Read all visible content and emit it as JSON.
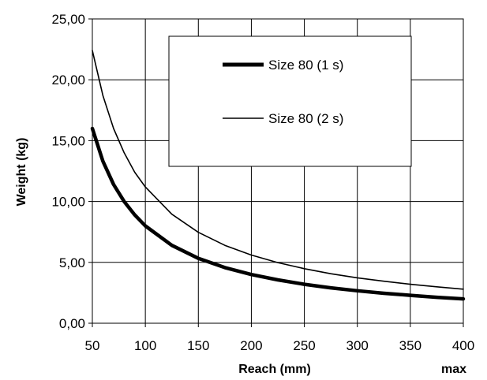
{
  "chart_data": {
    "type": "line",
    "title": "",
    "xlabel": "Reach (mm)",
    "ylabel": "Weight (kg)",
    "x_extra_label": "max",
    "xlim": [
      50,
      400
    ],
    "ylim": [
      0,
      25
    ],
    "x_ticks": [
      50,
      100,
      150,
      200,
      250,
      300,
      350,
      400
    ],
    "x_tick_labels": [
      "50",
      "100",
      "150",
      "200",
      "250",
      "300",
      "350",
      "400"
    ],
    "y_ticks": [
      0,
      5,
      10,
      15,
      20,
      25
    ],
    "y_tick_labels": [
      "0,00",
      "5,00",
      "10,00",
      "15,00",
      "20,00",
      "25,00"
    ],
    "grid": true,
    "legend_position": "top-right",
    "x": [
      50,
      60,
      70,
      80,
      90,
      100,
      125,
      150,
      175,
      200,
      225,
      250,
      275,
      300,
      325,
      350,
      375,
      400
    ],
    "series": [
      {
        "name": "Size 80 (1 s)",
        "line_width": "thick",
        "color": "#000000",
        "values": [
          16.0,
          13.3,
          11.4,
          10.0,
          8.9,
          8.0,
          6.4,
          5.33,
          4.57,
          4.0,
          3.56,
          3.2,
          2.91,
          2.67,
          2.46,
          2.29,
          2.13,
          2.0
        ]
      },
      {
        "name": "Size 80 (2 s)",
        "line_width": "thin",
        "color": "#000000",
        "values": [
          22.4,
          18.7,
          16.0,
          14.0,
          12.4,
          11.2,
          8.96,
          7.47,
          6.4,
          5.6,
          4.98,
          4.48,
          4.07,
          3.73,
          3.45,
          3.2,
          2.99,
          2.8
        ]
      }
    ]
  }
}
